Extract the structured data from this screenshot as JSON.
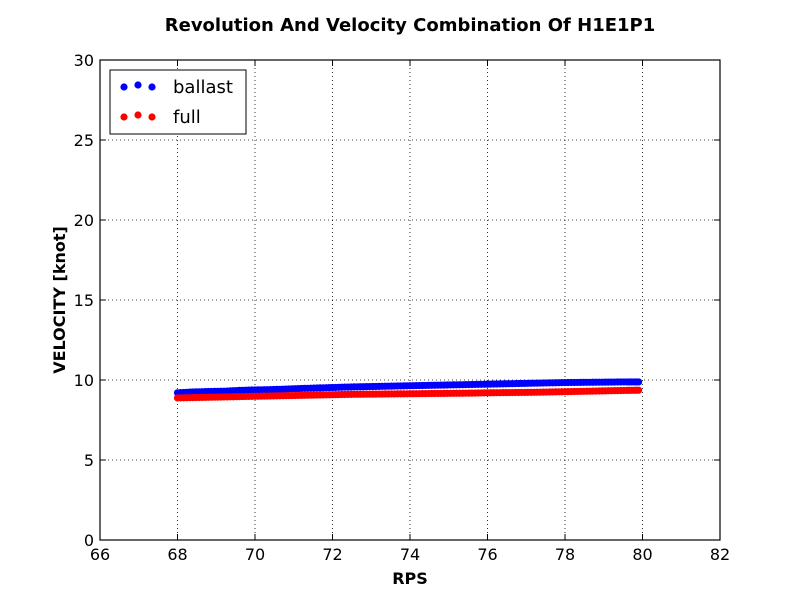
{
  "chart_data": {
    "type": "scatter",
    "title": "Revolution And Velocity Combination Of H1E1P1",
    "xlabel": "RPS",
    "ylabel": "VELOCITY [knot]",
    "xlim": [
      66,
      82
    ],
    "ylim": [
      0,
      30
    ],
    "xticks": [
      66,
      68,
      70,
      72,
      74,
      76,
      78,
      80,
      82
    ],
    "yticks": [
      0,
      5,
      10,
      15,
      20,
      25,
      30
    ],
    "grid": true,
    "legend_position": "top-left",
    "series": [
      {
        "name": "ballast",
        "color": "#0000ff",
        "x": [
          68.0,
          68.4,
          68.8,
          69.2,
          69.6,
          70.0,
          70.4,
          70.8,
          71.2,
          71.6,
          72.0,
          72.4,
          72.8,
          73.2,
          73.6,
          74.0,
          74.4,
          74.8,
          75.2,
          75.6,
          76.0,
          76.4,
          76.8,
          77.2,
          77.6,
          78.0,
          78.4,
          78.8,
          79.2,
          79.6,
          79.9
        ],
        "y": [
          9.2,
          9.25,
          9.28,
          9.3,
          9.35,
          9.38,
          9.4,
          9.43,
          9.47,
          9.5,
          9.53,
          9.56,
          9.58,
          9.6,
          9.62,
          9.64,
          9.66,
          9.68,
          9.7,
          9.72,
          9.74,
          9.76,
          9.78,
          9.8,
          9.82,
          9.84,
          9.85,
          9.86,
          9.87,
          9.88,
          9.88
        ]
      },
      {
        "name": "full",
        "color": "#ff0000",
        "x": [
          68.0,
          68.4,
          68.8,
          69.2,
          69.6,
          70.0,
          70.4,
          70.8,
          71.2,
          71.6,
          72.0,
          72.4,
          72.8,
          73.2,
          73.6,
          74.0,
          74.4,
          74.8,
          75.2,
          75.6,
          76.0,
          76.4,
          76.8,
          77.2,
          77.6,
          78.0,
          78.4,
          78.8,
          79.2,
          79.6,
          79.9
        ],
        "y": [
          8.88,
          8.9,
          8.92,
          8.94,
          8.96,
          8.98,
          9.0,
          9.02,
          9.04,
          9.06,
          9.08,
          9.1,
          9.11,
          9.12,
          9.13,
          9.14,
          9.15,
          9.16,
          9.17,
          9.18,
          9.2,
          9.21,
          9.22,
          9.23,
          9.25,
          9.27,
          9.29,
          9.31,
          9.33,
          9.35,
          9.36
        ]
      }
    ]
  }
}
